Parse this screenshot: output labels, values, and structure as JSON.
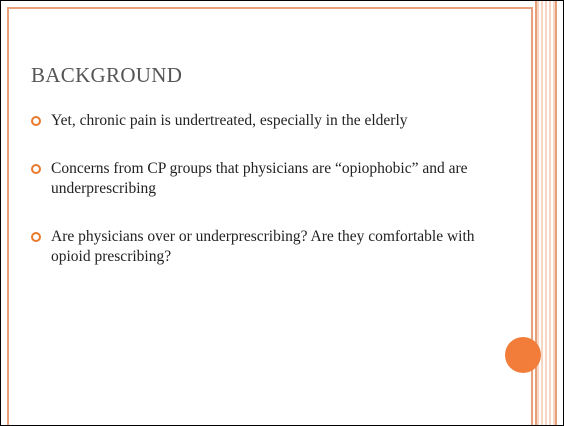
{
  "slide": {
    "title": "BACKGROUND",
    "bullets": [
      "Yet, chronic pain is undertreated, especially in the elderly",
      "Concerns from CP groups that physicians are “opiophobic” and are underprescribing",
      "Are physicians over or underprescribing?  Are they comfortable with opioid prescribing?"
    ]
  }
}
